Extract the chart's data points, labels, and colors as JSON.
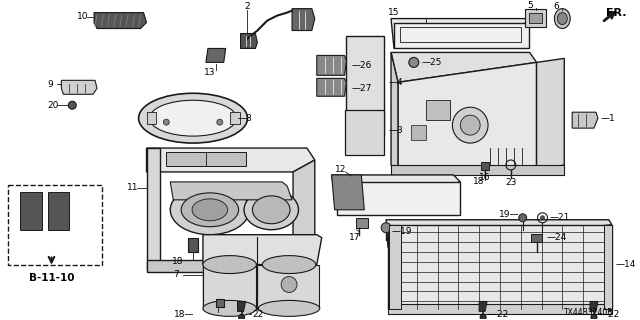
{
  "background_color": "#ffffff",
  "diagram_code": "TX44B3740B",
  "fr_label": "FR.",
  "ref_label": "B-11-10",
  "line_color": "#1a1a1a",
  "text_color": "#000000",
  "label_fontsize": 6.5,
  "bold_fontsize": 7.0
}
